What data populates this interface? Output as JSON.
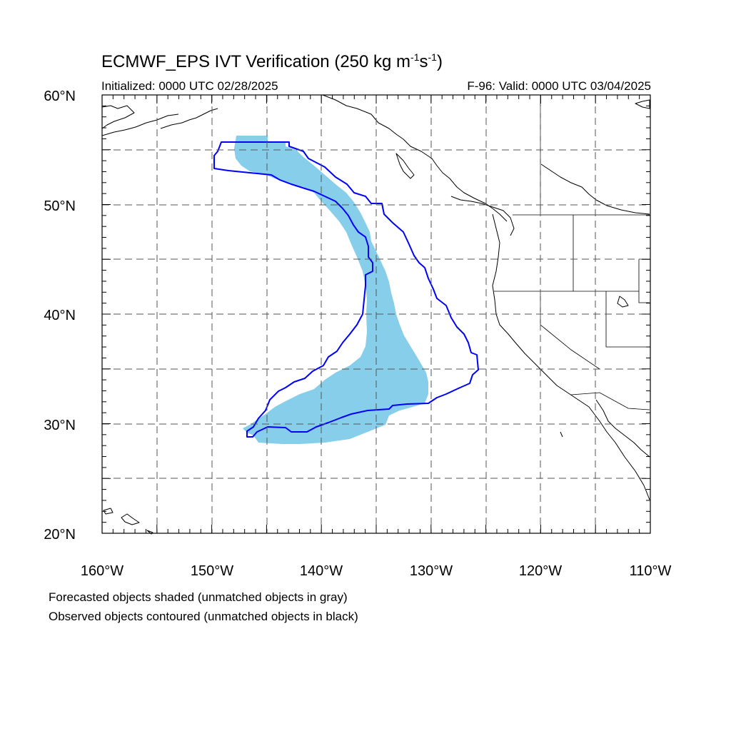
{
  "title": {
    "prefix": "ECMWF_EPS IVT Verification (250 kg m",
    "exp1": "-1",
    "mid": "s",
    "exp2": "-1",
    "suffix": ")"
  },
  "initialized": "Initialized: 0000 UTC 02/28/2025",
  "valid": "F-96: Valid: 0000 UTC 03/04/2025",
  "axes": {
    "lon_labels": [
      "160°W",
      "150°W",
      "140°W",
      "130°W",
      "120°W",
      "110°W"
    ],
    "lat_labels": [
      "60°N",
      "50°N",
      "40°N",
      "30°N",
      "20°N"
    ],
    "lon_range": [
      -160,
      -110
    ],
    "lat_range": [
      20,
      60
    ]
  },
  "captions": [
    "Forecasted objects shaded (unmatched objects in gray)",
    "Observed objects contoured (unmatched objects in black)"
  ],
  "colors": {
    "forecast_fill": "#87ceeb",
    "observed_contour": "#0000ff",
    "coastline": "#000000",
    "grid": "#555555"
  }
}
